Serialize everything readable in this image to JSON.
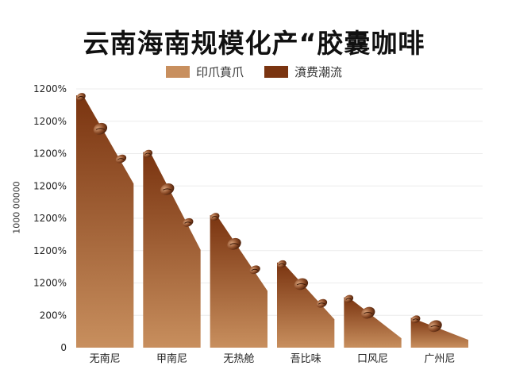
{
  "chart_data": {
    "type": "area",
    "title": "云南海南规模化产“胶囊咖啡",
    "ylabel": "1000 00000",
    "categories": [
      "无南尼",
      "甲南尼",
      "无热舱",
      "吾比味",
      "口风尼",
      "广州尼"
    ],
    "y_tick_labels": [
      "0",
      "200%",
      "1200%",
      "1200%",
      "1200%",
      "1200%",
      "1200%",
      "1200%",
      "1200%"
    ],
    "series": [
      {
        "name": "印爪賁爪",
        "color": "#c88f5e",
        "values": [
          8.0,
          6.2,
          4.2,
          2.7,
          1.6,
          0.95
        ]
      },
      {
        "name": "濆费潮流",
        "color": "#7a3410",
        "values": [
          7.9,
          5.4,
          3.3,
          2.0,
          1.1,
          0.5
        ]
      }
    ],
    "ylim": [
      0,
      8.2
    ],
    "grid": true,
    "legend_position": "top"
  }
}
